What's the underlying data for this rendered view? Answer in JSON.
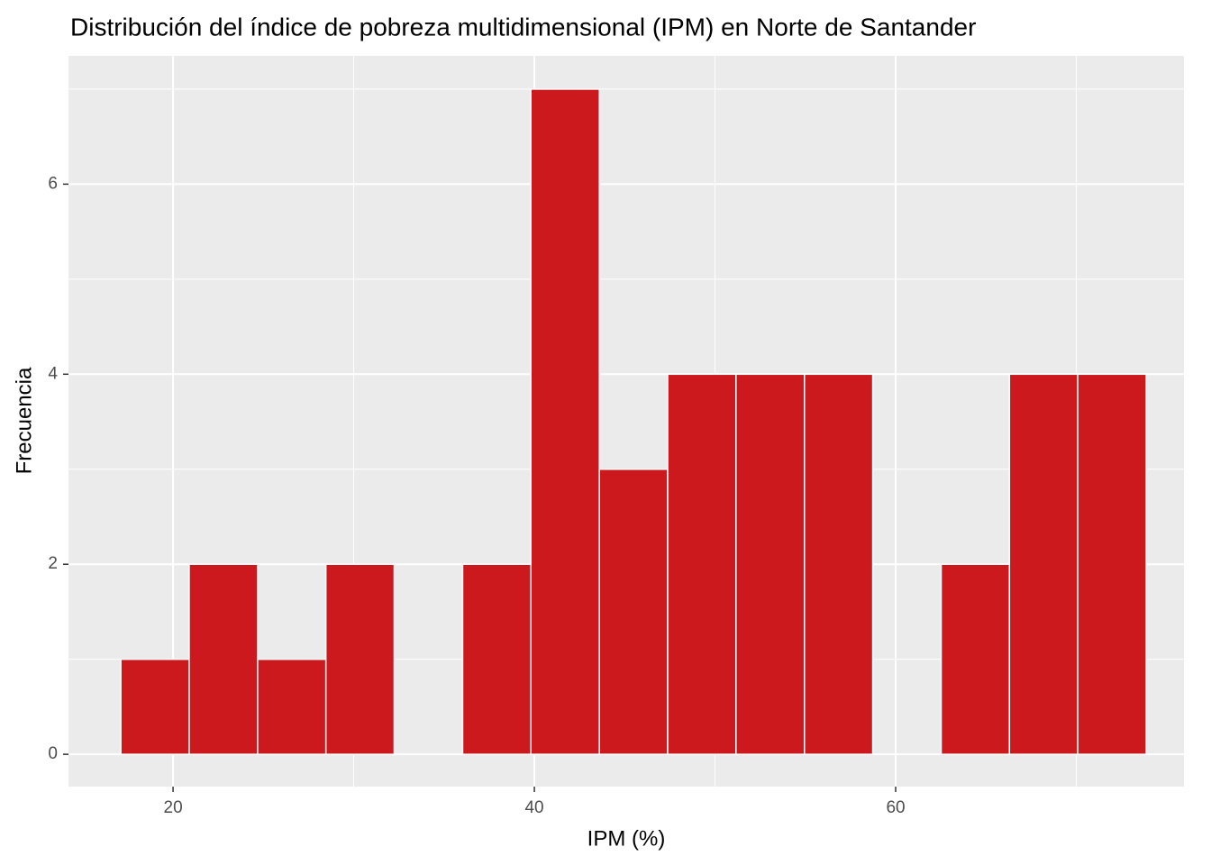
{
  "chart_data": {
    "type": "histogram",
    "title": "Distribución del índice de pobreza multidimensional (IPM) en Norte de Santander",
    "x_label": "IPM (%)",
    "y_label": "Frecuencia",
    "bins": [
      17.11,
      20.89,
      24.68,
      28.46,
      32.24,
      36.03,
      39.81,
      43.6,
      47.38,
      51.16,
      54.95,
      58.73,
      62.52,
      66.3,
      70.08,
      73.87
    ],
    "values": [
      1,
      2,
      1,
      2,
      0,
      2,
      7,
      3,
      4,
      4,
      4,
      0,
      2,
      4,
      4
    ],
    "color": "#cc191e",
    "xlim": [
      14.21,
      75.96
    ],
    "ylim": [
      -0.34,
      7.35
    ],
    "xticks": [
      20,
      40,
      60
    ],
    "yticks": [
      0,
      2,
      4,
      6
    ],
    "xminor": [
      30,
      50,
      70
    ],
    "yminor": [
      1,
      3,
      5,
      7
    ],
    "grid": true
  }
}
